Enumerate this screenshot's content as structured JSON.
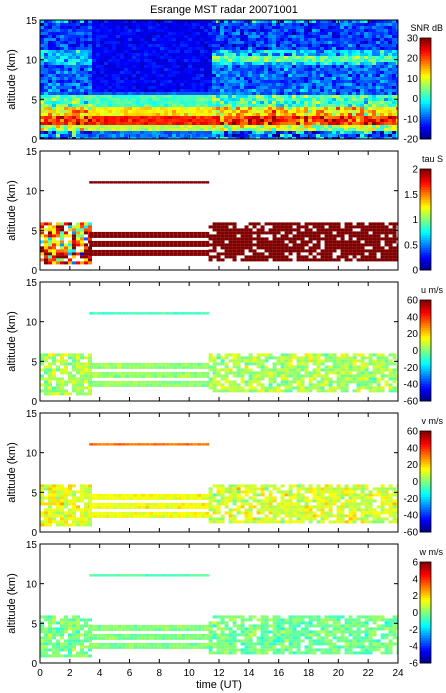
{
  "figure": {
    "title": "Esrange MST radar 20071001",
    "xlabel": "time (UT)",
    "ylabel": "altitude (km)"
  },
  "chart_data": [
    {
      "type": "heatmap",
      "variable": "SNR",
      "colorbar_label": "SNR dB",
      "xlim": [
        0,
        24
      ],
      "ylim": [
        0,
        15
      ],
      "clim": [
        -20,
        30
      ],
      "xticks": [
        0,
        2,
        4,
        6,
        8,
        10,
        12,
        14,
        16,
        18,
        20,
        22,
        24
      ],
      "yticks": [
        0,
        5,
        10,
        15
      ],
      "cticks": [
        30,
        20,
        10,
        0,
        -10,
        -20
      ],
      "colormap": "jet",
      "layers": [
        {
          "alt": [
            0.0,
            1.2
          ],
          "value": -8,
          "noise": 8
        },
        {
          "alt": [
            1.2,
            2.0
          ],
          "value": 8,
          "noise": 6
        },
        {
          "alt": [
            2.0,
            3.2
          ],
          "value": 22,
          "noise": 6
        },
        {
          "alt": [
            3.2,
            4.3
          ],
          "value": 12,
          "noise": 7
        },
        {
          "alt": [
            4.3,
            5.6
          ],
          "value": 2,
          "noise": 6
        },
        {
          "alt": [
            5.6,
            9.5
          ],
          "value": -9,
          "noise": 4
        },
        {
          "alt": [
            9.5,
            11.5
          ],
          "value": -4,
          "noise": 5
        },
        {
          "alt": [
            11.5,
            15.0
          ],
          "value": -11,
          "noise": 4
        }
      ]
    },
    {
      "type": "heatmap",
      "variable": "tau",
      "colorbar_label": "tau S",
      "xlim": [
        0,
        24
      ],
      "ylim": [
        0,
        15
      ],
      "clim": [
        0,
        2
      ],
      "cticks": [
        2,
        1.5,
        1,
        0.5,
        0
      ],
      "colormap": "jet",
      "regions": [
        {
          "x": [
            0.0,
            3.3
          ],
          "alt": [
            1.0,
            6.0
          ],
          "value": 1.5,
          "noise": 0.7
        },
        {
          "x": [
            3.3,
            11.3
          ],
          "alt": [
            1.5,
            4.8
          ],
          "value": 2.0,
          "noise": 0.0
        },
        {
          "x": [
            11.3,
            24.0
          ],
          "alt": [
            1.2,
            6.0
          ],
          "value": 2.0,
          "noise": 0.0
        },
        {
          "x": [
            3.3,
            11.3
          ],
          "alt": [
            10.9,
            11.2
          ],
          "value": 2.0,
          "noise": 0.0
        }
      ]
    },
    {
      "type": "heatmap",
      "variable": "u",
      "colorbar_label": "u m/s",
      "xlim": [
        0,
        24
      ],
      "ylim": [
        0,
        15
      ],
      "clim": [
        -60,
        60
      ],
      "cticks": [
        60,
        40,
        20,
        0,
        -20,
        -40,
        -60
      ],
      "colormap": "jet",
      "regions": [
        {
          "x": [
            0.0,
            3.3
          ],
          "alt": [
            1.0,
            6.0
          ],
          "value": 5,
          "noise": 8
        },
        {
          "x": [
            3.3,
            11.3
          ],
          "alt": [
            1.5,
            4.8
          ],
          "value": 2,
          "noise": 4
        },
        {
          "x": [
            11.3,
            24.0
          ],
          "alt": [
            1.2,
            6.0
          ],
          "value": 5,
          "noise": 8
        },
        {
          "x": [
            3.3,
            11.3
          ],
          "alt": [
            10.9,
            11.2
          ],
          "value": -8,
          "noise": 3
        }
      ]
    },
    {
      "type": "heatmap",
      "variable": "v",
      "colorbar_label": "v m/s",
      "xlim": [
        0,
        24
      ],
      "ylim": [
        0,
        15
      ],
      "clim": [
        -60,
        60
      ],
      "cticks": [
        60,
        40,
        20,
        0,
        -20,
        -40,
        -60
      ],
      "colormap": "jet",
      "regions": [
        {
          "x": [
            0.0,
            3.3
          ],
          "alt": [
            1.0,
            6.0
          ],
          "value": 12,
          "noise": 8
        },
        {
          "x": [
            3.3,
            11.3
          ],
          "alt": [
            1.5,
            4.8
          ],
          "value": 14,
          "noise": 4
        },
        {
          "x": [
            11.3,
            24.0
          ],
          "alt": [
            1.2,
            6.0
          ],
          "value": 10,
          "noise": 8
        },
        {
          "x": [
            3.3,
            11.3
          ],
          "alt": [
            10.9,
            11.2
          ],
          "value": 32,
          "noise": 3
        }
      ]
    },
    {
      "type": "heatmap",
      "variable": "w",
      "colorbar_label": "w m/s",
      "xlim": [
        0,
        24
      ],
      "ylim": [
        0,
        15
      ],
      "clim": [
        -6,
        6
      ],
      "cticks": [
        6,
        4,
        2,
        0,
        -2,
        -4,
        -6
      ],
      "colormap": "jet",
      "regions": [
        {
          "x": [
            0.0,
            3.3
          ],
          "alt": [
            1.0,
            6.0
          ],
          "value": 0,
          "noise": 0.7
        },
        {
          "x": [
            3.3,
            11.3
          ],
          "alt": [
            1.5,
            4.8
          ],
          "value": 0,
          "noise": 0.4
        },
        {
          "x": [
            11.3,
            24.0
          ],
          "alt": [
            1.2,
            6.0
          ],
          "value": -0.2,
          "noise": 0.7
        },
        {
          "x": [
            3.3,
            11.3
          ],
          "alt": [
            10.9,
            11.2
          ],
          "value": -0.5,
          "noise": 0.3
        }
      ]
    }
  ]
}
